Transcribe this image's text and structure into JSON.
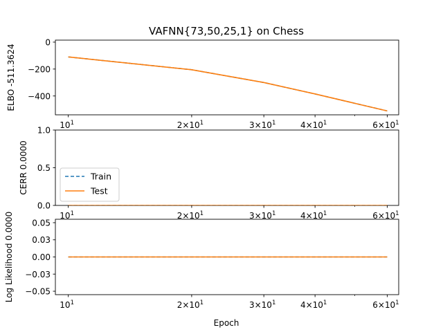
{
  "figure": {
    "title": "VAFNN{73,50,25,1} on Chess",
    "xlabel": "Epoch"
  },
  "colors": {
    "train": "#1f77b4",
    "test": "#ff7f0e"
  },
  "legend": {
    "train_label": "Train",
    "test_label": "Test",
    "placement": "lower-left of middle panel"
  },
  "chart_data": [
    {
      "type": "line",
      "title": "VAFNN{73,50,25,1} on Chess",
      "xlabel": "",
      "ylabel": "ELBO -511.3624",
      "xscale": "log",
      "xlim": [
        9.3,
        64
      ],
      "ylim": [
        -540,
        15
      ],
      "yticks": [
        0,
        -200,
        -400
      ],
      "ytick_labels": [
        "0",
        "−200",
        "−400"
      ],
      "xticks": [
        10,
        20,
        30,
        40,
        60
      ],
      "xtick_labels": [
        [
          "10",
          "1"
        ],
        [
          "2×10",
          "1"
        ],
        [
          "3×10",
          "1"
        ],
        [
          "4×10",
          "1"
        ],
        [
          "6×10",
          "1"
        ]
      ],
      "x": [
        10,
        20,
        30,
        40,
        60
      ],
      "series": [
        {
          "name": "Train",
          "style": "dashed",
          "values": [
            -110,
            -205,
            -300,
            -385,
            -511
          ]
        },
        {
          "name": "Test",
          "style": "solid",
          "values": [
            -110,
            -205,
            -300,
            -385,
            -511
          ]
        }
      ]
    },
    {
      "type": "line",
      "ylabel": "CERR 0.0000",
      "xscale": "log",
      "xlim": [
        9.3,
        64
      ],
      "ylim": [
        0,
        1
      ],
      "yticks": [
        0,
        0.5,
        1
      ],
      "ytick_labels": [
        "0.0",
        "0.5",
        "1.0"
      ],
      "xticks": [
        10,
        20,
        30,
        40,
        60
      ],
      "xtick_labels": [
        [
          "10",
          "1"
        ],
        [
          "2×10",
          "1"
        ],
        [
          "3×10",
          "1"
        ],
        [
          "4×10",
          "1"
        ],
        [
          "6×10",
          "1"
        ]
      ],
      "x": [
        10,
        20,
        30,
        40,
        60
      ],
      "series": [
        {
          "name": "Train",
          "style": "dashed",
          "values": [
            0,
            0,
            0,
            0,
            0
          ]
        },
        {
          "name": "Test",
          "style": "solid",
          "values": [
            0,
            0,
            0,
            0,
            0
          ]
        }
      ]
    },
    {
      "type": "line",
      "ylabel": "Log Likelihood 0.0000",
      "xlabel": "Epoch",
      "xscale": "log",
      "xlim": [
        9.3,
        64
      ],
      "ylim": [
        -0.055,
        0.055
      ],
      "yticks": [
        0.05,
        0.025,
        0,
        -0.025,
        -0.05
      ],
      "ytick_labels": [
        "0.05",
        "0.03",
        "0.00",
        "−0.03",
        "−0.05"
      ],
      "xticks": [
        10,
        20,
        30,
        40,
        60
      ],
      "xtick_labels": [
        [
          "10",
          "1"
        ],
        [
          "2×10",
          "1"
        ],
        [
          "3×10",
          "1"
        ],
        [
          "4×10",
          "1"
        ],
        [
          "6×10",
          "1"
        ]
      ],
      "x": [
        10,
        20,
        30,
        40,
        60
      ],
      "series": [
        {
          "name": "Train",
          "style": "dashed",
          "values": [
            0,
            0,
            0,
            0,
            0
          ]
        },
        {
          "name": "Test",
          "style": "solid",
          "values": [
            0,
            0,
            0,
            0,
            0
          ]
        }
      ]
    }
  ]
}
